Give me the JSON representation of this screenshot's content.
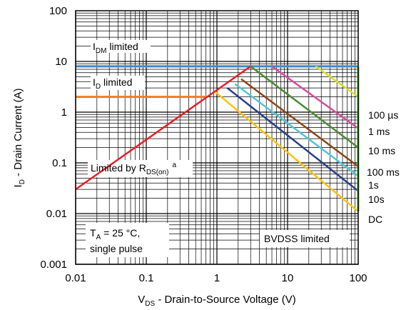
{
  "chart_data": {
    "type": "line",
    "title": "",
    "x_scale": "log",
    "y_scale": "log",
    "xlim": [
      0.01,
      100
    ],
    "ylim": [
      0.001,
      100
    ],
    "grid": true,
    "x_ticks": [
      {
        "value": 0.01,
        "label": "0.01"
      },
      {
        "value": 0.1,
        "label": "0.1"
      },
      {
        "value": 1,
        "label": "1"
      },
      {
        "value": 10,
        "label": "10"
      },
      {
        "value": 100,
        "label": "100"
      }
    ],
    "y_ticks": [
      {
        "value": 0.001,
        "label": "0.001"
      },
      {
        "value": 0.01,
        "label": "0.01"
      },
      {
        "value": 0.1,
        "label": "0.1"
      },
      {
        "value": 1,
        "label": "1"
      },
      {
        "value": 10,
        "label": "10"
      },
      {
        "value": 100,
        "label": "100"
      }
    ],
    "xlabel": {
      "pre": "V",
      "sub": "DS",
      "post": " - Drain-to-Source Voltage (V)"
    },
    "ylabel": {
      "pre": "I",
      "sub": "D",
      "post": " - Drain Current (A)"
    },
    "series": [
      {
        "key": "idm",
        "color": "#3d87c8",
        "width": 3,
        "points": [
          [
            0.01,
            8
          ],
          [
            100,
            8
          ]
        ]
      },
      {
        "key": "id",
        "color": "#f47b20",
        "width": 3,
        "points": [
          [
            0.01,
            2
          ],
          [
            0.72,
            2
          ]
        ]
      },
      {
        "key": "rds",
        "color": "#e51f27",
        "width": 2.5,
        "points": [
          [
            0.01,
            0.03
          ],
          [
            3,
            8
          ]
        ]
      },
      {
        "name": "100 µs",
        "color": "#d9e021",
        "width": 2.5,
        "points": [
          [
            25,
            8
          ],
          [
            100,
            2
          ]
        ]
      },
      {
        "name": "1 ms",
        "color": "#d54ca3",
        "width": 2.5,
        "points": [
          [
            6,
            8
          ],
          [
            100,
            0.48
          ]
        ]
      },
      {
        "name": "10 ms",
        "color": "#4a8c32",
        "width": 2.5,
        "points": [
          [
            3,
            8
          ],
          [
            100,
            0.2
          ]
        ]
      },
      {
        "name": "100 ms",
        "color": "#8b4513",
        "width": 2.5,
        "points": [
          [
            2.2,
            4.5
          ],
          [
            100,
            0.085
          ]
        ]
      },
      {
        "name": "1s",
        "color": "#4fc7d7",
        "width": 2.5,
        "points": [
          [
            1.8,
            3.6
          ],
          [
            100,
            0.055
          ]
        ]
      },
      {
        "name": "10s",
        "color": "#27408b",
        "width": 2.5,
        "points": [
          [
            1.4,
            3.0
          ],
          [
            100,
            0.028
          ]
        ]
      },
      {
        "name": "DC",
        "color": "#ffc20e",
        "width": 2.5,
        "points": [
          [
            0.95,
            2.5
          ],
          [
            100,
            0.011
          ]
        ]
      },
      {
        "key": "bvdss",
        "color": "#5bc23a",
        "width": 3,
        "points": [
          [
            100,
            8
          ],
          [
            100,
            0.011
          ]
        ]
      }
    ],
    "annotations": {
      "idm": {
        "pre": "I",
        "sub": "DM",
        "post": " limited"
      },
      "id": {
        "pre": "I",
        "sub": "D",
        "post": " limited"
      },
      "rds": {
        "pre": "Limited by R",
        "sub": "DS(on)",
        "sup": "a"
      },
      "ta_line1": "T",
      "ta_sub": "A",
      "ta_rest": " = 25 °C,",
      "ta_line2": "single pulse",
      "bvdss": "BVDSS limited"
    },
    "right_labels": [
      "100 µs",
      "1 ms",
      "10 ms",
      "100 ms",
      "1s",
      "10s",
      "DC"
    ]
  }
}
